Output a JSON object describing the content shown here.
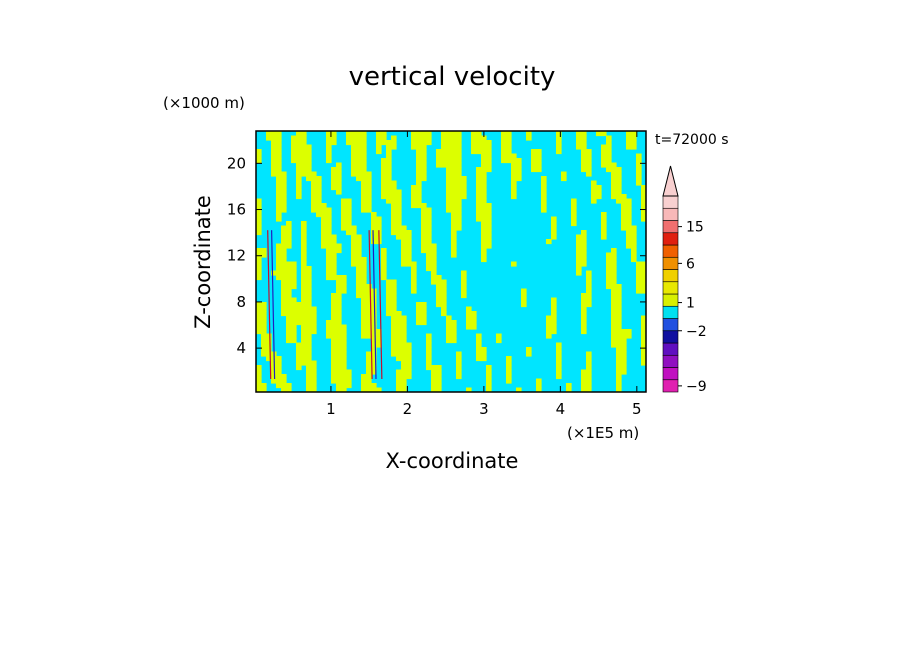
{
  "chart_data": {
    "type": "heatmap",
    "title": "vertical velocity",
    "xlabel": "X-coordinate",
    "ylabel": "Z-coordinate",
    "x_unit": "(×1E5 m)",
    "y_unit": "(×1000 m)",
    "time_label": "t=72000 s",
    "xlim": [
      0.02,
      5.12
    ],
    "ylim": [
      0.2,
      22.8
    ],
    "x_ticks": [
      1,
      2,
      3,
      4,
      5
    ],
    "x_tick_labels": [
      "1",
      "2",
      "3",
      "4",
      "5"
    ],
    "y_ticks": [
      4,
      8,
      12,
      16,
      20
    ],
    "y_tick_labels": [
      "4",
      "8",
      "12",
      "16",
      "20"
    ],
    "colorbar": {
      "levels": [
        -9,
        -2,
        1,
        6,
        15
      ],
      "level_labels": [
        "−9",
        "−2",
        "1",
        "6",
        "15"
      ],
      "colors": [
        "#e020b0",
        "#c010c0",
        "#9010c0",
        "#6010c0",
        "#1010a0",
        "#2050e0",
        "#00e0f0",
        "#d8f000",
        "#e8e800",
        "#f0d000",
        "#f09000",
        "#f06000",
        "#e02010",
        "#f07070",
        "#f8b8b8",
        "#f8d0d0"
      ]
    },
    "field_colors": {
      "low": "#00e5ff",
      "high": "#dcff00"
    }
  }
}
